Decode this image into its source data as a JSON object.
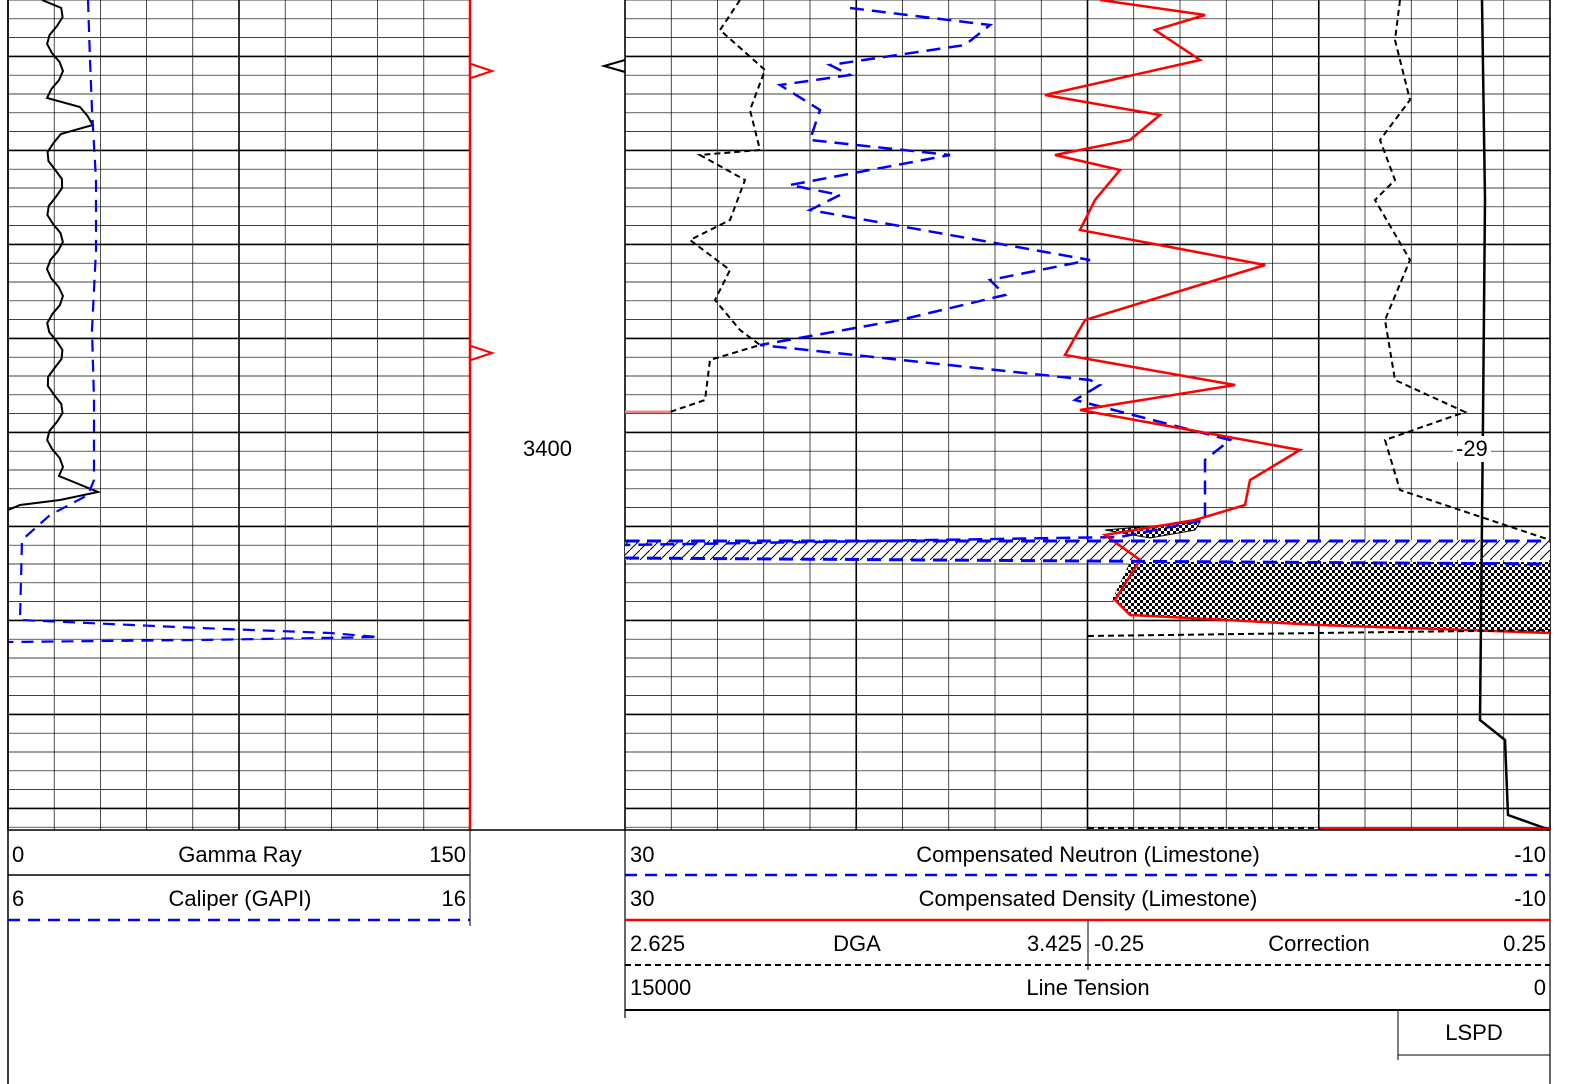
{
  "chart_data": {
    "type": "line",
    "title": "",
    "depth_label": "3400",
    "depth_axis": {
      "label_at": 3400,
      "range_visible": [
        3362,
        3404
      ]
    },
    "tracks": [
      {
        "name": "track-1",
        "curves": [
          {
            "name": "Gamma Ray",
            "min": "0",
            "max": "150",
            "color": "#000000",
            "style": "solid"
          },
          {
            "name": "Caliper (GAPI)",
            "min": "6",
            "max": "16",
            "color": "#0000ff",
            "style": "dashed"
          }
        ]
      },
      {
        "name": "track-2-3",
        "curves": [
          {
            "name": "Compensated Neutron (Limestone)",
            "min": "30",
            "max": "-10",
            "color": "#0000ff",
            "style": "dashed"
          },
          {
            "name": "Compensated Density (Limestone)",
            "min": "30",
            "max": "-10",
            "color": "#ff0000",
            "style": "solid"
          },
          {
            "name": "DGA",
            "min": "2.625",
            "max": "3.425",
            "color": "#000000",
            "style": "dashed"
          },
          {
            "name": "Correction",
            "min": "-0.25",
            "max": "0.25",
            "color": "#000000",
            "style": "dashed"
          },
          {
            "name": "Line Tension",
            "min": "15000",
            "max": "0",
            "color": "#000000",
            "style": "solid"
          }
        ]
      }
    ],
    "annotations": {
      "correction_readout": "-29",
      "lspd_label": "LSPD"
    },
    "grid": true
  }
}
